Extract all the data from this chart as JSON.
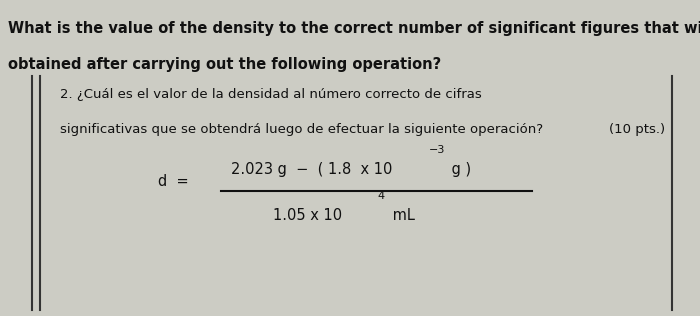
{
  "bg_color": "#ccccc4",
  "title_line1": "What is the value of the density to the correct number of significant figures that will be",
  "title_line2": "obtained after carrying out the following operation?",
  "title_fontsize": 10.5,
  "question_line1": "2. ¿Cuál es el valor de la densidad al número correcto de cifras",
  "question_line2": "significativas que se obtendrá luego de efectuar la siguiente operación?",
  "question_line3": "(10 pts.)",
  "question_fontsize": 9.5,
  "formula_fontsize": 10.5,
  "sup_fontsize": 8,
  "border_color": "#333333",
  "text_color": "#111111"
}
